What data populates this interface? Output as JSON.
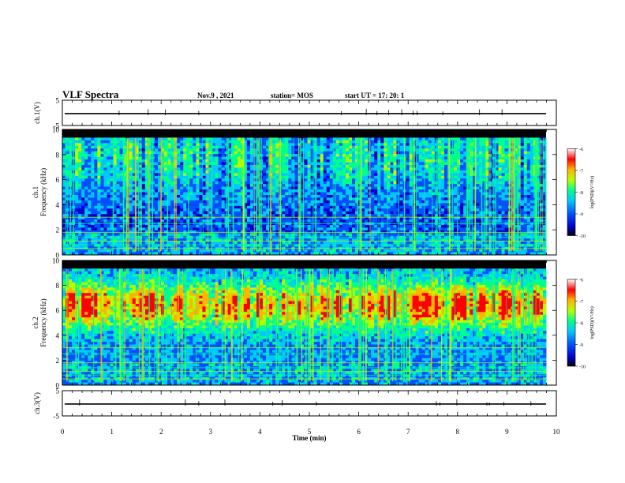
{
  "header": {
    "title": "VLF Spectra",
    "date": "Nov.9  , 2021",
    "station": "station= MOS",
    "start": "start  UT  =   17: 20: 1"
  },
  "chart_data": [
    {
      "type": "line",
      "panel": "ch1-waveform",
      "ylabel": "ch.1(V)",
      "ylim": [
        -5,
        5
      ],
      "yticks": [
        "5",
        "-5"
      ],
      "xlim": [
        0,
        10
      ],
      "series": [
        {
          "values_description_none": "",
          "level": -0.3
        }
      ]
    },
    {
      "type": "heatmap",
      "panel": "ch1-spectrogram",
      "ylabel": "ch.1\nFrequency (kHz)",
      "ylabel_line1": "ch.1",
      "ylabel_line2": "Frequency (kHz)",
      "ylim": [
        0,
        10
      ],
      "yticks": [
        "0",
        "2",
        "4",
        "6",
        "8",
        "10"
      ],
      "xlim": [
        0,
        10
      ],
      "colorbar": {
        "label": "log(PSD)(V²/Hz)",
        "range": [
          -10,
          -6
        ],
        "ticks": [
          "-6",
          "-7",
          "-8",
          "-9",
          "-10"
        ]
      }
    },
    {
      "type": "heatmap",
      "panel": "ch2-spectrogram",
      "ylabel_line1": "ch.2",
      "ylabel_line2": "Frequency (kHz)",
      "ylim": [
        0,
        10
      ],
      "yticks": [
        "0",
        "2",
        "4",
        "6",
        "8",
        "10"
      ],
      "xlim": [
        0,
        10
      ],
      "colorbar": {
        "label": "log(PSD)(V²/Hz)",
        "range": [
          -10,
          -6
        ],
        "ticks": [
          "-6",
          "-7",
          "-8",
          "-9",
          "-10"
        ]
      }
    },
    {
      "type": "line",
      "panel": "ch3-waveform",
      "ylabel": "ch.3(V)",
      "ylim": [
        -5,
        5
      ],
      "yticks": [
        "5",
        "-5"
      ],
      "xlim": [
        0,
        10
      ],
      "series": [
        {
          "level": -0.3
        }
      ]
    }
  ],
  "xaxis": {
    "label": "Time  (min)",
    "ticks": [
      "0",
      "1",
      "2",
      "3",
      "4",
      "5",
      "6",
      "7",
      "8",
      "9",
      "10"
    ]
  },
  "colors": {
    "axis": "#000000",
    "colormap": [
      "#000000",
      "#0000c8",
      "#0050ff",
      "#00c8ff",
      "#00ff8c",
      "#b4ff00",
      "#ffb400",
      "#ff0000",
      "#ffffff"
    ]
  }
}
